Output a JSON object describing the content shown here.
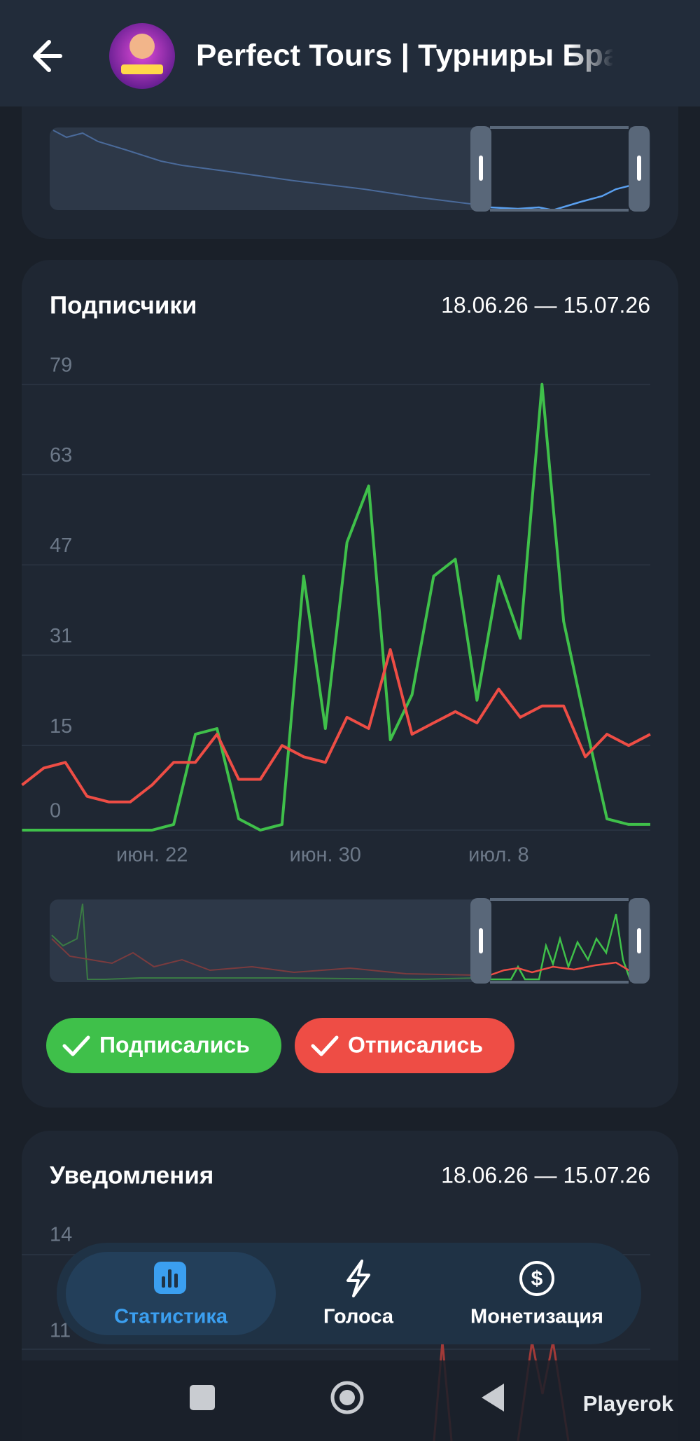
{
  "header": {
    "title": "Perfect Tours | Турниры Бра"
  },
  "chart_data": {
    "type": "line",
    "title": "Подписчики",
    "subtitle": "18.06.26 — 15.07.26",
    "categories": [
      null,
      null,
      null,
      null,
      null,
      null,
      "июн. 22",
      null,
      null,
      null,
      null,
      null,
      null,
      null,
      "июн. 30",
      null,
      null,
      null,
      null,
      null,
      null,
      null,
      "июл. 8",
      null,
      null,
      null,
      null,
      null,
      null,
      null
    ],
    "series": [
      {
        "name": "Подписались",
        "color": "#3fc04a",
        "values": [
          0,
          0,
          0,
          0,
          0,
          0,
          0,
          1,
          17,
          18,
          2,
          0,
          1,
          45,
          18,
          51,
          61,
          16,
          24,
          45,
          48,
          23,
          45,
          34,
          79,
          37,
          19,
          2,
          1,
          1
        ]
      },
      {
        "name": "Отписались",
        "color": "#ee4d45",
        "values": [
          8,
          11,
          12,
          6,
          5,
          5,
          8,
          12,
          12,
          17,
          9,
          9,
          15,
          13,
          12,
          20,
          18,
          32,
          17,
          19,
          21,
          19,
          25,
          20,
          22,
          22,
          13,
          17,
          15,
          17
        ]
      }
    ],
    "ylim": [
      0,
      79
    ],
    "yticks": [
      0,
      15,
      31,
      47,
      63,
      79
    ],
    "grid": true
  },
  "notifications": {
    "title": "Уведомления",
    "subtitle": "18.06.26 — 15.07.26",
    "yticks": [
      14,
      11
    ]
  },
  "nav": {
    "items": [
      "Статистика",
      "Голоса",
      "Монетизация"
    ]
  },
  "watermark": "Playerok"
}
